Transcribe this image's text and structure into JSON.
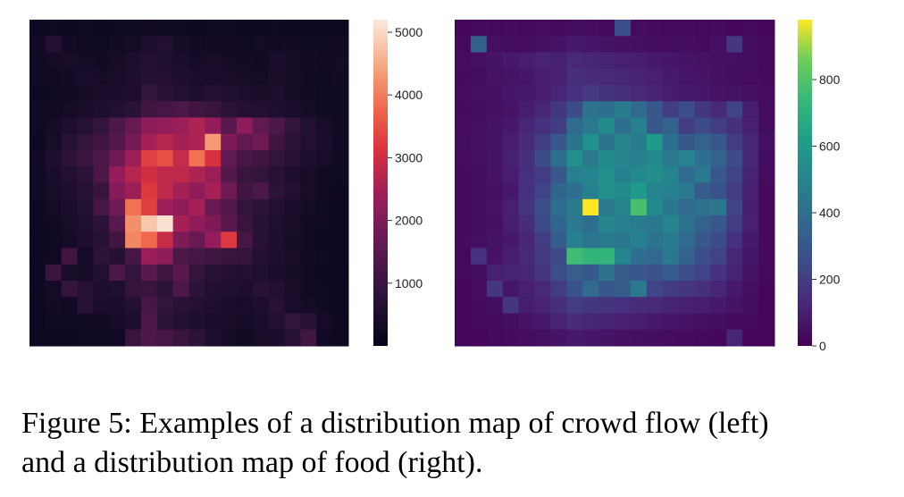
{
  "chart_data": [
    {
      "type": "heatmap",
      "colormap": "rocket",
      "grid_rows": 20,
      "grid_cols": 20,
      "vmin": 0,
      "vmax": 5200,
      "colorbar_ticks": [
        1000,
        2000,
        3000,
        4000,
        5000
      ],
      "colorbar_tick_labels": [
        "1000",
        "2000",
        "3000",
        "4000",
        "5000"
      ],
      "values": [
        [
          250,
          280,
          230,
          260,
          240,
          270,
          260,
          300,
          280,
          260,
          240,
          260,
          280,
          250,
          240,
          260,
          250,
          230,
          240,
          250
        ],
        [
          300,
          650,
          320,
          300,
          280,
          320,
          350,
          480,
          600,
          380,
          300,
          320,
          300,
          280,
          340,
          300,
          320,
          280,
          260,
          300
        ],
        [
          280,
          360,
          400,
          350,
          300,
          380,
          520,
          600,
          550,
          450,
          360,
          400,
          360,
          320,
          300,
          450,
          380,
          320,
          300,
          340
        ],
        [
          260,
          300,
          320,
          450,
          380,
          400,
          480,
          650,
          620,
          520,
          420,
          450,
          400,
          380,
          350,
          420,
          350,
          300,
          280,
          320
        ],
        [
          240,
          280,
          300,
          380,
          420,
          450,
          520,
          900,
          750,
          600,
          500,
          650,
          550,
          480,
          420,
          500,
          380,
          320,
          260,
          280
        ],
        [
          260,
          300,
          350,
          400,
          500,
          600,
          750,
          1100,
          1200,
          1300,
          1100,
          1000,
          800,
          650,
          600,
          550,
          450,
          350,
          280,
          260
        ],
        [
          280,
          350,
          500,
          700,
          900,
          1300,
          1700,
          2200,
          2300,
          2400,
          2600,
          2300,
          1500,
          2200,
          1600,
          1300,
          900,
          600,
          400,
          300
        ],
        [
          250,
          400,
          700,
          900,
          1100,
          1400,
          1900,
          2500,
          2700,
          2500,
          2600,
          4300,
          2000,
          1600,
          1800,
          1100,
          800,
          600,
          450,
          300
        ],
        [
          300,
          500,
          800,
          1000,
          1300,
          1800,
          2400,
          3300,
          3500,
          2900,
          3900,
          3100,
          1600,
          1200,
          1100,
          900,
          700,
          500,
          400,
          280
        ],
        [
          280,
          450,
          600,
          800,
          1300,
          2300,
          2700,
          3000,
          2800,
          2800,
          2600,
          2400,
          1400,
          1000,
          900,
          700,
          500,
          400,
          300,
          260
        ],
        [
          260,
          400,
          500,
          700,
          1000,
          2100,
          2400,
          3200,
          2800,
          2500,
          2200,
          2500,
          1800,
          1100,
          1300,
          800,
          600,
          400,
          300,
          250
        ],
        [
          250,
          350,
          450,
          600,
          1200,
          1800,
          3900,
          3300,
          2400,
          2200,
          2500,
          1700,
          1400,
          900,
          800,
          600,
          450,
          350,
          280,
          250
        ],
        [
          240,
          300,
          400,
          550,
          800,
          1500,
          4200,
          4800,
          5100,
          2500,
          2200,
          2000,
          1500,
          1000,
          700,
          550,
          400,
          300,
          260,
          240
        ],
        [
          230,
          280,
          350,
          500,
          700,
          1100,
          4100,
          3800,
          2900,
          2000,
          1700,
          2300,
          3200,
          1200,
          700,
          500,
          380,
          300,
          250,
          230
        ],
        [
          240,
          300,
          1100,
          350,
          800,
          650,
          1200,
          2400,
          2200,
          1300,
          1200,
          1100,
          1000,
          900,
          650,
          500,
          400,
          320,
          260,
          240
        ],
        [
          220,
          1000,
          400,
          350,
          600,
          1300,
          900,
          1500,
          1100,
          1500,
          900,
          700,
          650,
          600,
          550,
          450,
          380,
          300,
          250,
          220
        ],
        [
          230,
          350,
          900,
          700,
          500,
          550,
          900,
          1000,
          800,
          1300,
          800,
          600,
          550,
          500,
          700,
          600,
          400,
          300,
          260,
          230
        ],
        [
          220,
          320,
          300,
          700,
          450,
          450,
          650,
          1200,
          900,
          700,
          650,
          550,
          450,
          400,
          500,
          700,
          450,
          350,
          280,
          230
        ],
        [
          210,
          280,
          280,
          300,
          320,
          350,
          500,
          1300,
          800,
          600,
          500,
          450,
          400,
          350,
          450,
          600,
          900,
          700,
          350,
          220
        ],
        [
          200,
          250,
          250,
          260,
          280,
          300,
          1000,
          1300,
          1200,
          1000,
          800,
          500,
          350,
          300,
          400,
          450,
          700,
          1100,
          300,
          200
        ]
      ]
    },
    {
      "type": "heatmap",
      "colormap": "viridis",
      "grid_rows": 20,
      "grid_cols": 20,
      "vmin": 0,
      "vmax": 980,
      "colorbar_ticks": [
        0,
        200,
        400,
        600,
        800
      ],
      "colorbar_tick_labels": [
        "0",
        "200",
        "400",
        "600",
        "800"
      ],
      "values": [
        [
          20,
          30,
          25,
          30,
          25,
          35,
          30,
          40,
          35,
          30,
          260,
          35,
          30,
          25,
          30,
          25,
          30,
          20,
          25,
          20
        ],
        [
          30,
          340,
          50,
          40,
          35,
          45,
          60,
          80,
          70,
          60,
          50,
          45,
          40,
          35,
          40,
          30,
          45,
          180,
          40,
          30
        ],
        [
          35,
          50,
          60,
          80,
          90,
          110,
          100,
          130,
          120,
          110,
          100,
          90,
          80,
          70,
          60,
          55,
          50,
          45,
          40,
          30
        ],
        [
          30,
          40,
          55,
          60,
          70,
          90,
          100,
          150,
          140,
          130,
          120,
          110,
          100,
          80,
          70,
          60,
          50,
          40,
          35,
          30
        ],
        [
          35,
          45,
          50,
          70,
          80,
          90,
          120,
          160,
          190,
          170,
          150,
          130,
          110,
          90,
          80,
          70,
          60,
          55,
          45,
          35
        ],
        [
          30,
          40,
          50,
          60,
          90,
          120,
          180,
          250,
          420,
          400,
          460,
          380,
          300,
          200,
          260,
          180,
          130,
          220,
          90,
          40
        ],
        [
          35,
          45,
          55,
          80,
          120,
          160,
          200,
          380,
          450,
          520,
          400,
          480,
          300,
          350,
          200,
          250,
          200,
          150,
          100,
          40
        ],
        [
          40,
          50,
          60,
          90,
          140,
          200,
          300,
          420,
          560,
          420,
          500,
          460,
          600,
          400,
          300,
          350,
          300,
          200,
          120,
          50
        ],
        [
          35,
          45,
          55,
          100,
          150,
          250,
          400,
          550,
          450,
          520,
          500,
          480,
          520,
          450,
          500,
          400,
          350,
          250,
          120,
          40
        ],
        [
          30,
          40,
          55,
          90,
          160,
          200,
          300,
          480,
          500,
          560,
          480,
          520,
          540,
          500,
          380,
          450,
          300,
          220,
          110,
          35
        ],
        [
          30,
          40,
          50,
          80,
          160,
          220,
          360,
          400,
          480,
          560,
          520,
          600,
          500,
          480,
          450,
          320,
          280,
          200,
          100,
          30
        ],
        [
          30,
          40,
          60,
          100,
          180,
          260,
          400,
          460,
          980,
          450,
          500,
          780,
          520,
          440,
          380,
          420,
          440,
          220,
          90,
          30
        ],
        [
          25,
          40,
          50,
          90,
          140,
          250,
          360,
          450,
          400,
          500,
          480,
          460,
          440,
          500,
          420,
          350,
          300,
          200,
          100,
          30
        ],
        [
          30,
          45,
          55,
          80,
          120,
          200,
          320,
          480,
          430,
          460,
          440,
          480,
          420,
          460,
          380,
          300,
          250,
          160,
          80,
          30
        ],
        [
          25,
          160,
          60,
          90,
          130,
          190,
          250,
          760,
          720,
          720,
          500,
          400,
          380,
          450,
          350,
          260,
          220,
          120,
          70,
          25
        ],
        [
          25,
          40,
          100,
          110,
          120,
          180,
          260,
          330,
          300,
          420,
          320,
          300,
          280,
          320,
          260,
          220,
          160,
          110,
          60,
          25
        ],
        [
          20,
          35,
          180,
          70,
          100,
          130,
          200,
          280,
          380,
          300,
          320,
          450,
          230,
          200,
          180,
          150,
          120,
          80,
          50,
          20
        ],
        [
          20,
          30,
          40,
          180,
          90,
          110,
          150,
          200,
          180,
          170,
          160,
          140,
          130,
          110,
          100,
          90,
          80,
          60,
          40,
          20
        ],
        [
          20,
          25,
          30,
          40,
          60,
          80,
          110,
          140,
          120,
          110,
          100,
          90,
          80,
          70,
          60,
          50,
          40,
          30,
          25,
          20
        ],
        [
          15,
          20,
          25,
          30,
          35,
          45,
          60,
          80,
          70,
          60,
          50,
          45,
          40,
          35,
          30,
          25,
          20,
          120,
          20,
          15
        ]
      ]
    }
  ],
  "figure": {
    "caption_line1": "Figure 5: Examples of a distribution map of crowd flow (left)",
    "caption_line2": "and a distribution map of food (right)."
  }
}
